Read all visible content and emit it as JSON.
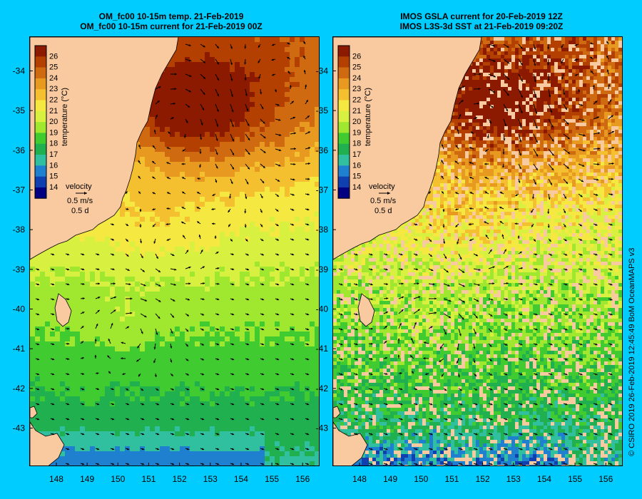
{
  "panels": [
    {
      "id": "left",
      "title_line1": "OM_fc00 10-15m temp. 21-Feb-2019",
      "title_line2": "OM_fc00 10-15m current for 21-Feb-2019 00Z",
      "noisy": false
    },
    {
      "id": "right",
      "title_line1": "IMOS GSLA current for 20-Feb-2019 12Z",
      "title_line2": "IMOS L3S-3d SST at 21-Feb-2019 09:20Z",
      "noisy": true
    }
  ],
  "colorbar": {
    "label": "temperature (°C)",
    "ticks": [
      "26",
      "25",
      "24",
      "23",
      "22",
      "21",
      "20",
      "19",
      "18",
      "17",
      "16",
      "15",
      "14"
    ],
    "colors": [
      "#8b1a00",
      "#b34000",
      "#d06a10",
      "#e89a20",
      "#f5c030",
      "#f5e840",
      "#d8f040",
      "#a0e830",
      "#40cc30",
      "#20b050",
      "#30c0a0",
      "#2080d0",
      "#1040b0",
      "#000080"
    ]
  },
  "velocity_legend": {
    "title": "velocity",
    "speed": "0.5 m/s",
    "time": "0.5 d"
  },
  "axes": {
    "lat_labels": [
      "-34",
      "-35",
      "-36",
      "-37",
      "-38",
      "-39",
      "-40",
      "-41",
      "-42",
      "-43"
    ],
    "lon_labels": [
      "148",
      "149",
      "150",
      "151",
      "152",
      "153",
      "154",
      "155",
      "156"
    ]
  },
  "colors": {
    "background": "#00ccff",
    "land": "#f9c9a0",
    "arrow": "#000000"
  },
  "credit": "© CSIRO 2019   26-Feb-2019 12:45:49 BoM OceanMAPS v3"
}
